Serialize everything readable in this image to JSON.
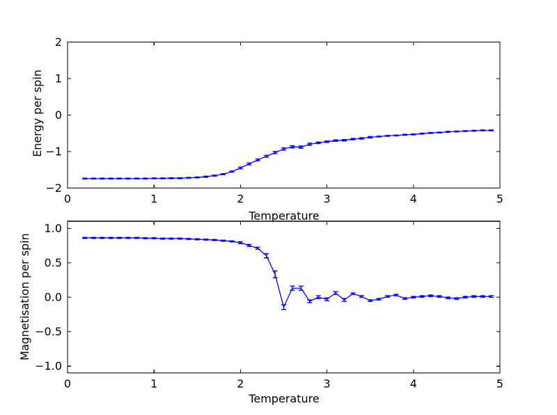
{
  "figure": {
    "background": "#ffffff",
    "axis_color": "#000000",
    "line_color": "#0000ff"
  },
  "chart_data": [
    {
      "type": "line",
      "series_name": "energy-vs-temperature",
      "title": "",
      "xlabel": "Temperature",
      "ylabel": "Energy per spin",
      "xlim": [
        0,
        5
      ],
      "ylim": [
        -2,
        2
      ],
      "xticks": [
        0,
        1,
        2,
        3,
        4,
        5
      ],
      "xtick_labels": [
        "0",
        "1",
        "2",
        "3",
        "4",
        "5"
      ],
      "yticks": [
        2,
        1,
        0,
        -1,
        -2
      ],
      "ytick_labels": [
        "2",
        "1",
        "0",
        "−1",
        "−2"
      ],
      "grid": false,
      "legend": "none",
      "line_color": "#0000ff",
      "error_bars": true,
      "x": [
        0.2,
        0.3,
        0.4,
        0.5,
        0.6,
        0.7,
        0.8,
        0.9,
        1.0,
        1.1,
        1.2,
        1.3,
        1.4,
        1.5,
        1.6,
        1.7,
        1.8,
        1.9,
        2.0,
        2.1,
        2.2,
        2.3,
        2.4,
        2.5,
        2.6,
        2.7,
        2.8,
        2.9,
        3.0,
        3.1,
        3.2,
        3.3,
        3.4,
        3.5,
        3.6,
        3.7,
        3.8,
        3.9,
        4.0,
        4.1,
        4.2,
        4.3,
        4.4,
        4.5,
        4.6,
        4.7,
        4.8,
        4.9
      ],
      "y": [
        -1.74,
        -1.74,
        -1.74,
        -1.74,
        -1.74,
        -1.74,
        -1.74,
        -1.74,
        -1.735,
        -1.735,
        -1.73,
        -1.73,
        -1.72,
        -1.71,
        -1.69,
        -1.66,
        -1.62,
        -1.55,
        -1.45,
        -1.34,
        -1.23,
        -1.13,
        -1.03,
        -0.93,
        -0.87,
        -0.88,
        -0.8,
        -0.76,
        -0.73,
        -0.7,
        -0.69,
        -0.66,
        -0.64,
        -0.61,
        -0.59,
        -0.57,
        -0.56,
        -0.54,
        -0.53,
        -0.51,
        -0.49,
        -0.48,
        -0.46,
        -0.45,
        -0.44,
        -0.43,
        -0.42,
        -0.42
      ],
      "yerr": [
        0.012,
        0.012,
        0.012,
        0.012,
        0.012,
        0.012,
        0.012,
        0.012,
        0.012,
        0.012,
        0.012,
        0.012,
        0.012,
        0.012,
        0.015,
        0.015,
        0.015,
        0.015,
        0.025,
        0.025,
        0.025,
        0.025,
        0.03,
        0.03,
        0.03,
        0.03,
        0.03,
        0.02,
        0.02,
        0.02,
        0.02,
        0.02,
        0.02,
        0.02,
        0.012,
        0.012,
        0.012,
        0.012,
        0.012,
        0.012,
        0.012,
        0.012,
        0.012,
        0.012,
        0.012,
        0.012,
        0.012,
        0.012
      ]
    },
    {
      "type": "line",
      "series_name": "magnetisation-vs-temperature",
      "title": "",
      "xlabel": "Temperature",
      "ylabel": "Magnetisation per spin",
      "xlim": [
        0,
        5
      ],
      "ylim": [
        -1.1,
        1.1
      ],
      "xticks": [
        0,
        1,
        2,
        3,
        4,
        5
      ],
      "xtick_labels": [
        "0",
        "1",
        "2",
        "3",
        "4",
        "5"
      ],
      "yticks": [
        1.0,
        0.5,
        0.0,
        -0.5,
        -1.0
      ],
      "ytick_labels": [
        "1.0",
        "0.5",
        "0.0",
        "−0.5",
        "−1.0"
      ],
      "grid": false,
      "legend": "none",
      "line_color": "#0000ff",
      "error_bars": true,
      "x": [
        0.2,
        0.3,
        0.4,
        0.5,
        0.6,
        0.7,
        0.8,
        0.9,
        1.0,
        1.1,
        1.2,
        1.3,
        1.4,
        1.5,
        1.6,
        1.7,
        1.8,
        1.9,
        2.0,
        2.1,
        2.2,
        2.3,
        2.4,
        2.5,
        2.6,
        2.7,
        2.8,
        2.9,
        3.0,
        3.1,
        3.2,
        3.3,
        3.4,
        3.5,
        3.6,
        3.7,
        3.8,
        3.9,
        4.0,
        4.1,
        4.2,
        4.3,
        4.4,
        4.5,
        4.6,
        4.7,
        4.8,
        4.9
      ],
      "y": [
        0.86,
        0.86,
        0.86,
        0.86,
        0.86,
        0.86,
        0.86,
        0.855,
        0.855,
        0.85,
        0.85,
        0.85,
        0.845,
        0.84,
        0.835,
        0.83,
        0.82,
        0.81,
        0.79,
        0.75,
        0.71,
        0.6,
        0.33,
        -0.145,
        0.13,
        0.13,
        -0.06,
        0.0,
        -0.03,
        0.06,
        -0.04,
        0.05,
        0.01,
        -0.05,
        -0.03,
        0.01,
        0.03,
        -0.02,
        0.0,
        0.01,
        0.02,
        0.01,
        -0.01,
        -0.02,
        0.0,
        0.01,
        0.01,
        0.01
      ],
      "yerr": [
        0.008,
        0.008,
        0.008,
        0.008,
        0.008,
        0.008,
        0.008,
        0.008,
        0.008,
        0.008,
        0.008,
        0.008,
        0.008,
        0.008,
        0.008,
        0.008,
        0.008,
        0.008,
        0.015,
        0.015,
        0.015,
        0.03,
        0.05,
        0.035,
        0.03,
        0.03,
        0.02,
        0.02,
        0.02,
        0.02,
        0.02,
        0.012,
        0.012,
        0.012,
        0.012,
        0.012,
        0.012,
        0.012,
        0.012,
        0.012,
        0.012,
        0.012,
        0.012,
        0.012,
        0.012,
        0.012,
        0.012,
        0.012
      ]
    }
  ]
}
